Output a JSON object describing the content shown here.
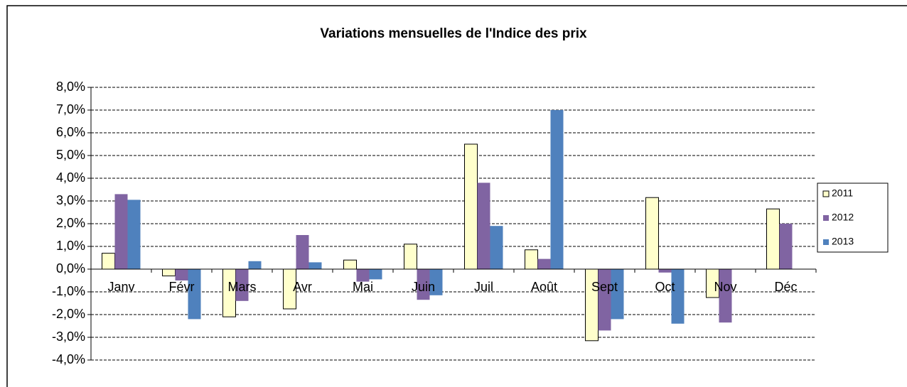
{
  "chart_data": {
    "type": "bar",
    "title": "Variations mensuelles de l'Indice des prix",
    "categories": [
      "Janv",
      "Févr",
      "Mars",
      "Avr",
      "Mai",
      "Juin",
      "Juil",
      "Août",
      "Sept",
      "Oct",
      "Nov",
      "Déc"
    ],
    "series": [
      {
        "name": "2011",
        "color": "#ffffcc",
        "values": [
          0.7,
          -0.3,
          -2.1,
          -1.75,
          0.4,
          1.1,
          5.5,
          0.85,
          -3.15,
          3.15,
          -1.25,
          2.65
        ]
      },
      {
        "name": "2012",
        "color": "#8064a2",
        "values": [
          3.3,
          -0.5,
          -1.4,
          1.5,
          -0.55,
          -1.35,
          3.8,
          0.45,
          -2.7,
          -0.15,
          -2.35,
          2.0
        ]
      },
      {
        "name": "2013",
        "color": "#4f81bd",
        "values": [
          3.05,
          -2.2,
          0.35,
          0.3,
          -0.45,
          -1.15,
          1.9,
          7.0,
          -2.2,
          -2.4,
          null,
          null
        ]
      }
    ],
    "ylim": [
      -4,
      8
    ],
    "yticks": [
      {
        "value": -4,
        "label": "-4,0%"
      },
      {
        "value": -3,
        "label": "-3,0%"
      },
      {
        "value": -2,
        "label": "-2,0%"
      },
      {
        "value": -1,
        "label": "-1,0%"
      },
      {
        "value": 0,
        "label": "0,0%"
      },
      {
        "value": 1,
        "label": "1,0%"
      },
      {
        "value": 2,
        "label": "2,0%"
      },
      {
        "value": 3,
        "label": "3,0%"
      },
      {
        "value": 4,
        "label": "4,0%"
      },
      {
        "value": 5,
        "label": "5,0%"
      },
      {
        "value": 6,
        "label": "6,0%"
      },
      {
        "value": 7,
        "label": "7,0%"
      },
      {
        "value": 8,
        "label": "8,0%"
      }
    ],
    "grid": true,
    "legend": "right"
  }
}
